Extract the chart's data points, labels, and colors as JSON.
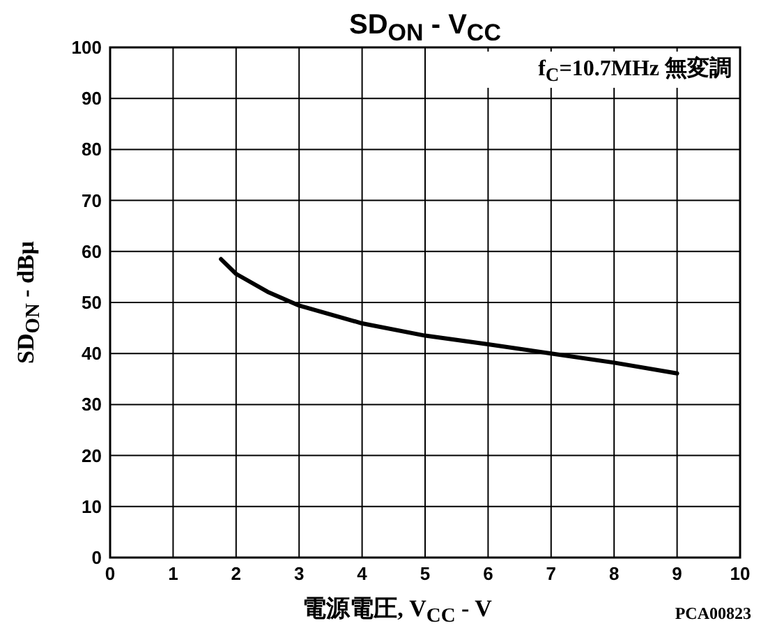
{
  "chart_data": {
    "type": "line",
    "title": "SD$_{ON}$ - V$_{CC}$",
    "xlabel": "電源電圧, V$_{CC}$ - V",
    "ylabel": "SD$_{ON}$ - dBμ",
    "annotations": [
      "f$_{C}$=10.7MHz 無変調",
      "PCA00823"
    ],
    "x": [
      1.76,
      2,
      2.5,
      3,
      4,
      5,
      6,
      7,
      8,
      9
    ],
    "series": [
      {
        "color": "#000000",
        "values": [
          58.5,
          55.6,
          52.1,
          49.4,
          45.9,
          43.5,
          41.8,
          40,
          38.2,
          36.1
        ]
      }
    ],
    "xlim": [
      0,
      10
    ],
    "ylim": [
      0,
      100
    ],
    "xticks": [
      0,
      1,
      2,
      3,
      4,
      5,
      6,
      7,
      8,
      9,
      10
    ],
    "yticks": [
      0,
      10,
      20,
      30,
      40,
      50,
      60,
      70,
      80,
      90,
      100
    ],
    "grid": true
  }
}
